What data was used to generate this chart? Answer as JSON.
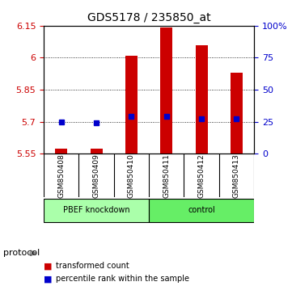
{
  "title": "GDS5178 / 235850_at",
  "samples": [
    "GSM850408",
    "GSM850409",
    "GSM850410",
    "GSM850411",
    "GSM850412",
    "GSM850413"
  ],
  "bar_values": [
    5.574,
    5.574,
    6.01,
    6.14,
    6.06,
    5.93
  ],
  "bar_bottom": 5.55,
  "blue_values": [
    5.7,
    5.693,
    5.724,
    5.724,
    5.715,
    5.714
  ],
  "ylim_left": [
    5.55,
    6.15
  ],
  "yticks_left": [
    5.55,
    5.7,
    5.85,
    6.0,
    6.15
  ],
  "ytick_labels_left": [
    "5.55",
    "5.7",
    "5.85",
    "6",
    "6.15"
  ],
  "ylim_right": [
    0,
    100
  ],
  "yticks_right": [
    0,
    25,
    50,
    75,
    100
  ],
  "ytick_labels_right": [
    "0",
    "25",
    "50",
    "75",
    "100%"
  ],
  "bar_color": "#cc0000",
  "blue_color": "#0000cc",
  "groups": [
    {
      "label": "PBEF knockdown",
      "start": 0,
      "end": 3,
      "color": "#aaffaa"
    },
    {
      "label": "control",
      "start": 3,
      "end": 6,
      "color": "#66ee66"
    }
  ],
  "protocol_label": "protocol",
  "legend_items": [
    {
      "color": "#cc0000",
      "label": "transformed count"
    },
    {
      "color": "#0000cc",
      "label": "percentile rank within the sample"
    }
  ],
  "group_row_color": "#dddddd",
  "background_color": "#ffffff"
}
